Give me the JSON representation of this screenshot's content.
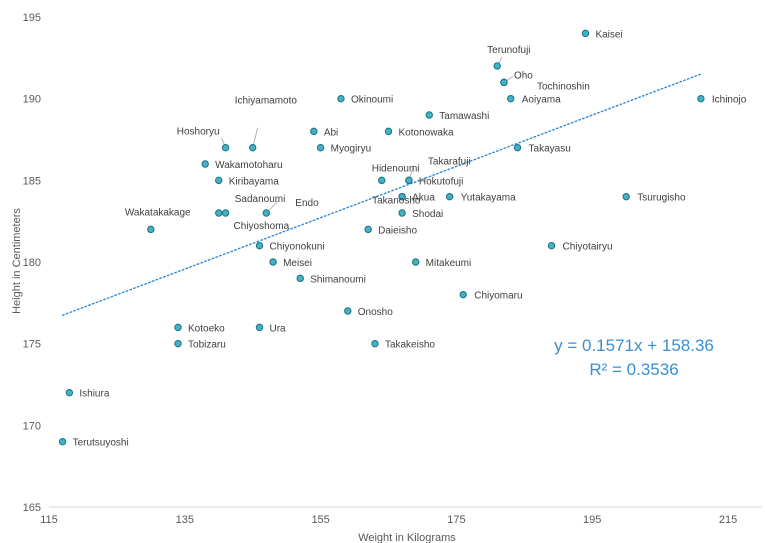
{
  "chart_data": {
    "type": "scatter",
    "xlabel": "Weight in Kilograms",
    "ylabel": "Height in Centimeters",
    "xlim": [
      115,
      220
    ],
    "ylim": [
      165,
      195
    ],
    "x_ticks": [
      115,
      135,
      155,
      175,
      195,
      215
    ],
    "y_ticks": [
      165,
      170,
      175,
      180,
      185,
      190,
      195
    ],
    "grid": false,
    "points": [
      {
        "label": "Kaisei",
        "x": 194,
        "y": 194
      },
      {
        "label": "Terunofuji",
        "x": 181,
        "y": 192
      },
      {
        "label": "Oho",
        "x": 182,
        "y": 191
      },
      {
        "label": "Tochinoshin",
        "x": 182,
        "y": 191
      },
      {
        "label": "Okinoumi",
        "x": 158,
        "y": 190
      },
      {
        "label": "Aoiyama",
        "x": 183,
        "y": 190
      },
      {
        "label": "Ichinojo",
        "x": 211,
        "y": 190
      },
      {
        "label": "Tamawashi",
        "x": 171,
        "y": 189
      },
      {
        "label": "Abi",
        "x": 154,
        "y": 188
      },
      {
        "label": "Kotonowaka",
        "x": 165,
        "y": 188
      },
      {
        "label": "Hoshoryu",
        "x": 141,
        "y": 187
      },
      {
        "label": "Ichiyamamoto",
        "x": 145,
        "y": 187
      },
      {
        "label": "Myogiryu",
        "x": 155,
        "y": 187
      },
      {
        "label": "Takayasu",
        "x": 184,
        "y": 187
      },
      {
        "label": "Wakamotoharu",
        "x": 138,
        "y": 186
      },
      {
        "label": "Kiribayama",
        "x": 140,
        "y": 185
      },
      {
        "label": "Hidenoumi",
        "x": 164,
        "y": 185
      },
      {
        "label": "Takarafuji",
        "x": 168,
        "y": 185
      },
      {
        "label": "Hokutofuji",
        "x": 168,
        "y": 185
      },
      {
        "label": "Takanosho",
        "x": 167,
        "y": 184
      },
      {
        "label": "Akua",
        "x": 167,
        "y": 184
      },
      {
        "label": "Yutakayama",
        "x": 174,
        "y": 184
      },
      {
        "label": "Tsurugisho",
        "x": 200,
        "y": 184
      },
      {
        "label": "Sadanoumi",
        "x": 140,
        "y": 183
      },
      {
        "label": "Chiyoshoma",
        "x": 141,
        "y": 183
      },
      {
        "label": "Endo",
        "x": 147,
        "y": 183
      },
      {
        "label": "Shodai",
        "x": 167,
        "y": 183
      },
      {
        "label": "Wakatakakage",
        "x": 130,
        "y": 182
      },
      {
        "label": "Daieisho",
        "x": 162,
        "y": 182
      },
      {
        "label": "Chiyonokuni",
        "x": 146,
        "y": 181
      },
      {
        "label": "Chiyotairyu",
        "x": 189,
        "y": 181
      },
      {
        "label": "Meisei",
        "x": 148,
        "y": 180
      },
      {
        "label": "Mitakeumi",
        "x": 169,
        "y": 180
      },
      {
        "label": "Shimanoumi",
        "x": 152,
        "y": 179
      },
      {
        "label": "Chiyomaru",
        "x": 176,
        "y": 178
      },
      {
        "label": "Onosho",
        "x": 159,
        "y": 177
      },
      {
        "label": "Kotoeko",
        "x": 134,
        "y": 176
      },
      {
        "label": "Ura",
        "x": 146,
        "y": 176
      },
      {
        "label": "Tobizaru",
        "x": 134,
        "y": 175
      },
      {
        "label": "Takakeisho",
        "x": 163,
        "y": 175
      },
      {
        "label": "Ishiura",
        "x": 118,
        "y": 172
      },
      {
        "label": "Terutsuyoshi",
        "x": 117,
        "y": 169
      }
    ],
    "trendline": {
      "type": "linear",
      "style": "dotted",
      "slope": 0.1571,
      "intercept": 158.36,
      "x_range": [
        117,
        211
      ],
      "equation_text": "y = 0.1571x + 158.36",
      "r2_text": "R² = 0.3536"
    },
    "colors": {
      "marker_fill": "#3fb4c8",
      "marker_stroke": "#1e6f80",
      "trendline": "#2e8ad8",
      "equation": "#3a8fd4",
      "axis_text": "#595959"
    }
  }
}
